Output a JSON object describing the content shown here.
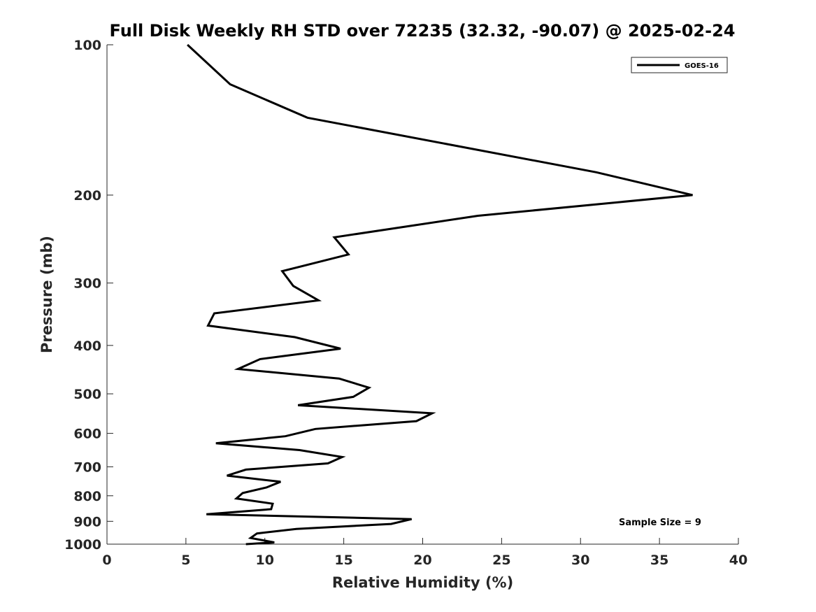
{
  "chart_data": {
    "type": "line",
    "title": "Full Disk Weekly RH STD over 72235 (32.32, -90.07) @ 2025-02-24",
    "xlabel": "Relative Humidity (%)",
    "ylabel": "Pressure (mb)",
    "xlim": [
      0,
      40
    ],
    "ylim": [
      100,
      1000
    ],
    "y_scale": "log",
    "y_reversed": true,
    "x_ticks": [
      0,
      5,
      10,
      15,
      20,
      25,
      30,
      35,
      40
    ],
    "y_ticks": [
      100,
      200,
      300,
      400,
      500,
      600,
      700,
      800,
      900,
      1000
    ],
    "grid": false,
    "legend_position": "top-right",
    "series": [
      {
        "name": "GOES-16",
        "color": "#000000",
        "x": [
          5.1,
          7.8,
          12.7,
          31.0,
          37.1,
          23.5,
          14.4,
          15.3,
          11.1,
          11.8,
          13.4,
          6.8,
          6.4,
          11.9,
          14.8,
          9.7,
          8.3,
          14.7,
          16.6,
          15.6,
          12.1,
          20.6,
          19.6,
          13.2,
          11.3,
          6.9,
          12.2,
          14.9,
          14.0,
          8.8,
          7.6,
          11.0,
          10.1,
          8.6,
          8.2,
          10.5,
          10.4,
          6.3,
          19.3,
          18.0,
          12.0,
          9.5,
          9.1,
          10.6,
          8.8
        ],
        "y": [
          100,
          120,
          140,
          180,
          200,
          220,
          243,
          263,
          284,
          304,
          325,
          345,
          365,
          385,
          406,
          426,
          446,
          466,
          486,
          507,
          527,
          547,
          567,
          588,
          608,
          628,
          648,
          669,
          689,
          709,
          729,
          750,
          770,
          790,
          810,
          830,
          851,
          871,
          891,
          911,
          932,
          952,
          972,
          992,
          1000
        ]
      }
    ],
    "annotation": "Sample Size = 9"
  }
}
